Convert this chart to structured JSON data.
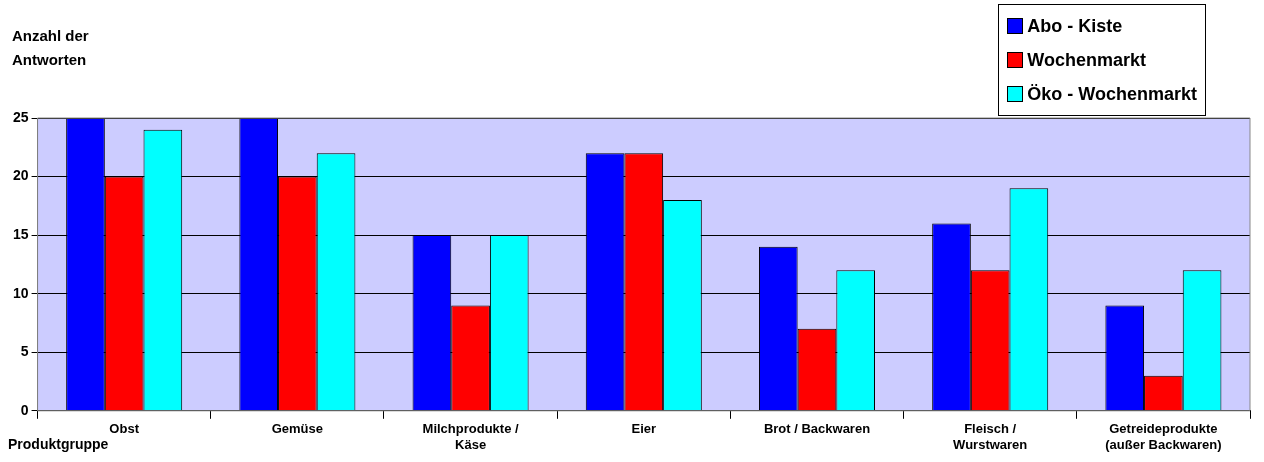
{
  "chart_data": {
    "type": "bar",
    "ylabel": "Anzahl der Antworten",
    "xlabel": "Produktgruppe",
    "categories": [
      "Obst",
      "Gemüse",
      "Milchprodukte /\nKäse",
      "Eier",
      "Brot / Backwaren",
      "Fleisch /\nWurstwaren",
      "Getreideprodukte\n(außer Backwaren)"
    ],
    "series": [
      {
        "name": "Abo - Kiste",
        "color": "#0000ff",
        "values": [
          25,
          25,
          15,
          22,
          14,
          16,
          9
        ]
      },
      {
        "name": "Wochenmarkt",
        "color": "#ff0000",
        "values": [
          20,
          20,
          9,
          22,
          7,
          12,
          3
        ]
      },
      {
        "name": "Öko - Wochenmarkt",
        "color": "#00ffff",
        "values": [
          24,
          22,
          15,
          18,
          12,
          19,
          12
        ]
      }
    ],
    "ylim": [
      0,
      25
    ],
    "yticks": [
      0,
      5,
      10,
      15,
      20,
      25
    ],
    "grid": "y",
    "legend": "top right"
  }
}
